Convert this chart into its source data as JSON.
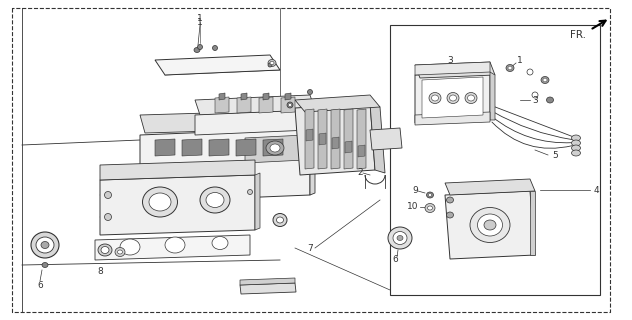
{
  "background_color": "#ffffff",
  "line_color": "#333333",
  "fig_width": 6.32,
  "fig_height": 3.2,
  "dpi": 100,
  "fr_label": "FR.",
  "label_fontsize": 6.5
}
